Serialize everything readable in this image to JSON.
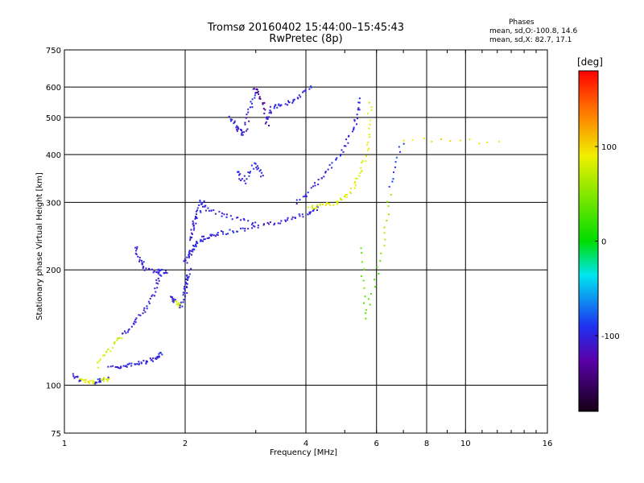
{
  "chart_data": {
    "type": "scatter",
    "title": "Tromsø 20160402 15:44:00–15:45:43",
    "subtitle": "RwPretec (8p)",
    "xlabel": "Frequency [MHz]",
    "ylabel": "Stationary phase Virtual Height [km]",
    "x_scale": "log",
    "y_scale": "log",
    "xlim": [
      1,
      16
    ],
    "ylim": [
      75,
      750
    ],
    "x_ticks": [
      1,
      2,
      4,
      6,
      8,
      10,
      16
    ],
    "y_ticks": [
      75,
      100,
      200,
      300,
      400,
      500,
      600,
      750
    ],
    "grid": true,
    "stats": {
      "heading": "Phases",
      "line_o": "mean, sd,O:-100.8, 14.6",
      "line_x": "mean, sd,X:  82.7, 17.1"
    },
    "colorbar": {
      "label": "[deg]",
      "ticks": [
        "100",
        "0",
        "-100"
      ],
      "tick_values": [
        100,
        0,
        -100
      ],
      "range": [
        -180,
        180
      ]
    },
    "traces": [
      {
        "x": [
          1.05,
          1.1,
          1.15,
          1.2,
          1.25,
          1.3
        ],
        "y": [
          106,
          103,
          102,
          102,
          103,
          104
        ],
        "phase": [
          -100,
          80,
          90,
          -95,
          85,
          -105
        ]
      },
      {
        "x": [
          1.3,
          1.4,
          1.5,
          1.6,
          1.7,
          1.75
        ],
        "y": [
          112,
          112,
          113,
          115,
          118,
          121
        ],
        "phase": [
          -105,
          -100,
          -98,
          -102,
          -100,
          -96
        ]
      },
      {
        "x": [
          1.2,
          1.3,
          1.4,
          1.5,
          1.6,
          1.7,
          1.75
        ],
        "y": [
          112,
          125,
          135,
          145,
          160,
          180,
          200
        ],
        "phase": [
          85,
          75,
          -100,
          -105,
          -98,
          -102,
          -95
        ]
      },
      {
        "x": [
          1.5,
          1.55,
          1.6,
          1.7,
          1.8
        ],
        "y": [
          230,
          210,
          200,
          198,
          197
        ],
        "phase": [
          -105,
          -100,
          -110,
          -102,
          -98
        ]
      },
      {
        "x": [
          1.85,
          1.9,
          1.95,
          2.0,
          2.02,
          2.05
        ],
        "y": [
          170,
          165,
          160,
          175,
          185,
          200
        ],
        "phase": [
          -100,
          80,
          -98,
          -104,
          -101,
          -99
        ]
      },
      {
        "x": [
          2.0,
          2.05,
          2.1,
          2.2,
          2.3,
          2.5,
          2.8,
          3.2,
          3.6,
          4.0,
          4.3
        ],
        "y": [
          210,
          220,
          230,
          240,
          245,
          250,
          255,
          262,
          270,
          280,
          290
        ],
        "phase": [
          -100,
          -102,
          -98,
          -105,
          -100,
          -96,
          -103,
          -110,
          -101,
          -99,
          -102
        ]
      },
      {
        "x": [
          2.05,
          2.1,
          2.15,
          2.2,
          2.3,
          2.6,
          3.0
        ],
        "y": [
          240,
          260,
          280,
          300,
          285,
          275,
          265
        ],
        "phase": [
          -104,
          -100,
          -98,
          -102,
          -100,
          -101,
          -97
        ]
      },
      {
        "x": [
          4.1,
          4.4,
          4.8,
          5.2,
          5.5,
          5.7,
          5.8
        ],
        "y": [
          290,
          295,
          300,
          320,
          360,
          420,
          550
        ],
        "phase": [
          82,
          88,
          80,
          84,
          86,
          90,
          78
        ]
      },
      {
        "x": [
          3.8,
          4.2,
          4.6,
          5.0,
          5.3,
          5.5
        ],
        "y": [
          300,
          330,
          370,
          420,
          480,
          560
        ],
        "phase": [
          -100,
          -104,
          -98,
          -102,
          -99,
          -101
        ]
      },
      {
        "x": [
          2.6,
          2.7,
          2.8,
          2.9,
          3.0,
          3.1,
          3.2,
          3.3,
          3.5,
          3.8,
          4.1
        ],
        "y": [
          500,
          470,
          450,
          520,
          600,
          560,
          480,
          530,
          540,
          560,
          600
        ],
        "phase": [
          -100,
          -102,
          -110,
          -98,
          -120,
          -125,
          -105,
          -101,
          -99,
          -103,
          -100
        ]
      },
      {
        "x": [
          2.7,
          2.8,
          3.0,
          3.1
        ],
        "y": [
          360,
          340,
          380,
          350
        ],
        "phase": [
          -100,
          -96,
          -102,
          -104
        ]
      },
      {
        "x": [
          5.5,
          5.6,
          6.2,
          6.5,
          7.0,
          12.0
        ],
        "y": [
          230,
          150,
          220,
          330,
          440,
          430
        ],
        "phase": [
          40,
          30,
          60,
          -90,
          95,
          100
        ]
      }
    ]
  }
}
